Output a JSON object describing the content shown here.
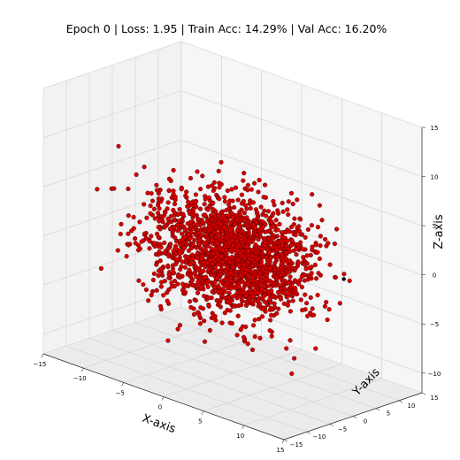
{
  "chart_data": {
    "type": "scatter3d",
    "title": "Epoch 0 | Loss: 1.95 | Train Acc: 14.29% | Val Acc: 16.20%",
    "xlabel": "X-axis",
    "ylabel": "Y-axis",
    "zlabel": "Z-axis",
    "xlim": [
      -15,
      15
    ],
    "ylim": [
      -15,
      15
    ],
    "zlim": [
      -12,
      15
    ],
    "x_ticks": [
      -15,
      -10,
      -5,
      0,
      5,
      10,
      15
    ],
    "y_ticks": [
      -15,
      -10,
      -5,
      0,
      5,
      10,
      15
    ],
    "z_ticks": [
      -10,
      -5,
      0,
      5,
      10,
      15
    ],
    "grid": true,
    "colors": {
      "points": "#d40000",
      "point_edge": "#2a0000",
      "highlight": "#000000"
    },
    "series": [
      {
        "cluster_center": [
          0,
          0,
          0
        ],
        "spread": [
          8,
          8,
          5
        ],
        "count": 1900
      }
    ],
    "highlight_point": [
      11,
      5,
      0
    ]
  }
}
